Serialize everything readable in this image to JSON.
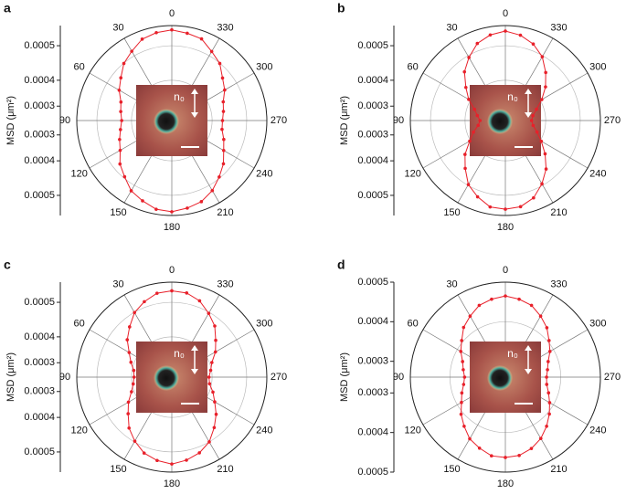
{
  "chart_data": [
    {
      "type": "polar",
      "panel_label": "a",
      "y_label": "MSD (μm²)",
      "inset_label": "n₀",
      "theta": [
        0,
        10,
        20,
        30,
        40,
        50,
        60,
        70,
        80,
        90,
        100,
        110,
        120,
        130,
        140,
        150,
        160,
        170,
        180,
        190,
        200,
        210,
        220,
        230,
        240,
        250,
        260,
        270,
        280,
        290,
        300,
        310,
        320,
        330,
        340,
        350
      ],
      "angle_ticks": [
        0,
        30,
        60,
        90,
        120,
        150,
        180,
        210,
        240,
        270,
        300,
        330
      ],
      "color": "#e8202a",
      "values": [
        0.000545,
        0.00054,
        0.000531,
        0.000508,
        0.000489,
        0.000461,
        0.000441,
        0.000418,
        0.00041,
        0.000404,
        0.000411,
        0.000423,
        0.000437,
        0.000465,
        0.000485,
        0.000512,
        0.000527,
        0.000543,
        0.000547,
        0.000539,
        0.00053,
        0.000511,
        0.000486,
        0.000464,
        0.000438,
        0.000422,
        0.000407,
        0.000406,
        0.000412,
        0.00042,
        0.000442,
        0.00046,
        0.000489,
        0.000507,
        0.000532,
        0.000538
      ],
      "rlim": [
        0.00023,
        0.00056
      ],
      "rticks": [
        {
          "value": 0.00028,
          "label": "0.0003"
        },
        {
          "value": 0.00037,
          "label": "0.0004"
        },
        {
          "value": 0.00049,
          "label": "0.0005"
        }
      ]
    },
    {
      "type": "polar",
      "panel_label": "b",
      "y_label": "MSD (μm²)",
      "inset_label": "n₀",
      "theta": [
        0,
        10,
        20,
        30,
        40,
        50,
        60,
        70,
        80,
        90,
        100,
        110,
        120,
        130,
        140,
        150,
        160,
        170,
        180,
        190,
        200,
        210,
        220,
        230,
        240,
        250,
        260,
        270,
        280,
        290,
        300,
        310,
        320,
        330,
        340,
        350
      ],
      "angle_ticks": [
        0,
        30,
        60,
        90,
        120,
        150,
        180,
        210,
        240,
        270,
        300,
        330
      ],
      "color": "#e8202a",
      "values": [
        0.000541,
        0.000532,
        0.000515,
        0.000483,
        0.000451,
        0.000409,
        0.000377,
        0.000344,
        0.000329,
        0.000318,
        0.000326,
        0.000348,
        0.000373,
        0.000413,
        0.000447,
        0.000487,
        0.000512,
        0.000535,
        0.000538,
        0.000534,
        0.000516,
        0.000484,
        0.00045,
        0.00041,
        0.000374,
        0.000347,
        0.000328,
        0.000321,
        0.000327,
        0.000345,
        0.000376,
        0.000412,
        0.000448,
        0.000486,
        0.000513,
        0.000531
      ],
      "rlim": [
        0.00023,
        0.00056
      ],
      "rticks": [
        {
          "value": 0.00028,
          "label": "0.0003"
        },
        {
          "value": 0.00037,
          "label": "0.0004"
        },
        {
          "value": 0.00049,
          "label": "0.0005"
        }
      ]
    },
    {
      "type": "polar",
      "panel_label": "c",
      "y_label": "MSD (μm²)",
      "inset_label": "n₀",
      "theta": [
        0,
        10,
        20,
        30,
        40,
        50,
        60,
        70,
        80,
        90,
        100,
        110,
        120,
        130,
        140,
        150,
        160,
        170,
        180,
        190,
        200,
        210,
        220,
        230,
        240,
        250,
        260,
        270,
        280,
        290,
        300,
        310,
        320,
        330,
        340,
        350
      ],
      "angle_ticks": [
        0,
        30,
        60,
        90,
        120,
        150,
        180,
        210,
        240,
        270,
        300,
        330
      ],
      "color": "#e8202a",
      "values": [
        0.00053,
        0.000526,
        0.000509,
        0.000489,
        0.000458,
        0.000432,
        0.000401,
        0.000381,
        0.000364,
        0.000361,
        0.000366,
        0.000379,
        0.000404,
        0.000428,
        0.000461,
        0.000487,
        0.000511,
        0.000524,
        0.000532,
        0.000523,
        0.00051,
        0.00049,
        0.000459,
        0.000431,
        0.000402,
        0.000382,
        0.000363,
        0.000359,
        0.000367,
        0.000378,
        0.000405,
        0.000429,
        0.000462,
        0.000486,
        0.000512,
        0.000527
      ],
      "rlim": [
        0.00023,
        0.00056
      ],
      "rticks": [
        {
          "value": 0.00028,
          "label": "0.0003"
        },
        {
          "value": 0.00037,
          "label": "0.0004"
        },
        {
          "value": 0.00049,
          "label": "0.0005"
        }
      ]
    },
    {
      "type": "polar",
      "panel_label": "d",
      "y_label": "MSD (μm²)",
      "inset_label": "n₀",
      "theta": [
        0,
        10,
        20,
        30,
        40,
        50,
        60,
        70,
        80,
        90,
        100,
        110,
        120,
        130,
        140,
        150,
        160,
        170,
        180,
        190,
        200,
        210,
        220,
        230,
        240,
        250,
        260,
        270,
        280,
        290,
        300,
        310,
        320,
        330,
        340,
        350
      ],
      "angle_ticks": [
        0,
        30,
        60,
        90,
        120,
        150,
        180,
        210,
        240,
        270,
        300,
        330
      ],
      "color": "#e8202a",
      "values": [
        0.000465,
        0.00046,
        0.000453,
        0.000438,
        0.000424,
        0.000404,
        0.00039,
        0.000375,
        0.000368,
        0.000363,
        0.000367,
        0.000377,
        0.000388,
        0.000406,
        0.000422,
        0.00044,
        0.000451,
        0.000462,
        0.000463,
        0.000461,
        0.000452,
        0.000439,
        0.000422,
        0.000405,
        0.000389,
        0.000376,
        0.000366,
        0.000364,
        0.000368,
        0.000375,
        0.00039,
        0.000404,
        0.000423,
        0.000438,
        0.000453,
        0.00046
      ],
      "rlim": [
        0.00026,
        0.0005
      ],
      "rticks": [
        {
          "value": 0.0003,
          "label": "0.0003"
        },
        {
          "value": 0.0004,
          "label": "0.0004"
        },
        {
          "value": 0.0005,
          "label": "0.0005"
        }
      ]
    }
  ]
}
